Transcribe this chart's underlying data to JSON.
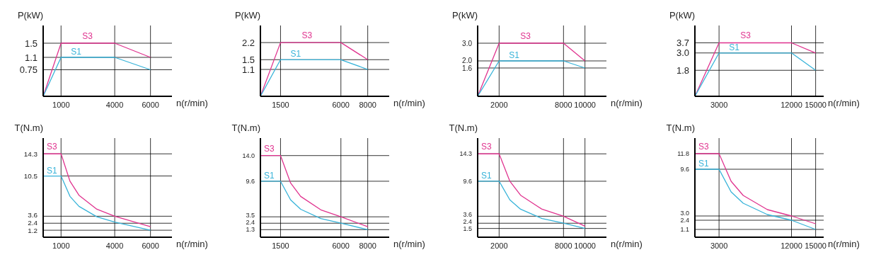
{
  "chart_data": [
    {
      "type": "line",
      "ylabel": "P(kW)",
      "xlabel": "n(r/min)",
      "xlim": [
        0,
        7200
      ],
      "xticks": [
        1000,
        4000,
        6000
      ],
      "ylim": [
        0,
        2
      ],
      "yticks": [
        0.75,
        1.1,
        1.5
      ],
      "grid": true,
      "legend": false,
      "series": [
        {
          "name": "S3",
          "color": "#e0338f",
          "x": [
            0,
            1000,
            4000,
            6000
          ],
          "values": [
            0,
            1.5,
            1.5,
            1.1
          ]
        },
        {
          "name": "S1",
          "color": "#37b3d9",
          "x": [
            0,
            1000,
            4000,
            6000
          ],
          "values": [
            0,
            1.1,
            1.1,
            0.75
          ]
        }
      ]
    },
    {
      "type": "line",
      "ylabel": "P(kW)",
      "xlabel": "n(r/min)",
      "xlim": [
        0,
        9600
      ],
      "xticks": [
        1500,
        6000,
        8000
      ],
      "ylim": [
        0,
        2.9
      ],
      "yticks": [
        1.1,
        1.5,
        2.2
      ],
      "grid": true,
      "legend": false,
      "series": [
        {
          "name": "S3",
          "color": "#e0338f",
          "x": [
            0,
            1500,
            6000,
            8000
          ],
          "values": [
            0,
            2.2,
            2.2,
            1.5
          ]
        },
        {
          "name": "S1",
          "color": "#37b3d9",
          "x": [
            0,
            1500,
            6000,
            8000
          ],
          "values": [
            0,
            1.5,
            1.5,
            1.1
          ]
        }
      ]
    },
    {
      "type": "line",
      "ylabel": "P(kW)",
      "xlabel": "n(r/min)",
      "xlim": [
        0,
        12000
      ],
      "xticks": [
        2000,
        8000,
        10000
      ],
      "ylim": [
        0,
        4
      ],
      "yticks": [
        1.6,
        {
          "value": 2,
          "label": "2.0"
        },
        {
          "value": 3,
          "label": "3.0"
        }
      ],
      "grid": true,
      "legend": false,
      "series": [
        {
          "name": "S3",
          "color": "#e0338f",
          "x": [
            0,
            2000,
            8000,
            10000
          ],
          "values": [
            0,
            3,
            3,
            2
          ]
        },
        {
          "name": "S1",
          "color": "#37b3d9",
          "x": [
            0,
            2000,
            8000,
            10000
          ],
          "values": [
            0,
            2,
            2,
            1.6
          ]
        }
      ]
    },
    {
      "type": "line",
      "ylabel": "P(kW)",
      "xlabel": "n(r/min)",
      "xlim": [
        0,
        16000
      ],
      "xticks": [
        3000,
        12000,
        15000
      ],
      "ylim": [
        0,
        4.9
      ],
      "yticks": [
        1.8,
        {
          "value": 3,
          "label": "3.0"
        },
        3.7
      ],
      "grid": true,
      "legend": false,
      "series": [
        {
          "name": "S3",
          "color": "#e0338f",
          "x": [
            0,
            3000,
            12000,
            15000
          ],
          "values": [
            0,
            3.7,
            3.7,
            3
          ]
        },
        {
          "name": "S1",
          "color": "#37b3d9",
          "x": [
            0,
            3000,
            12000,
            15000
          ],
          "values": [
            0,
            3,
            3,
            1.8
          ]
        }
      ]
    },
    {
      "type": "line",
      "ylabel": "T(N.m)",
      "xlabel": "n(r/min)",
      "xlim": [
        0,
        7200
      ],
      "xticks": [
        1000,
        4000,
        6000
      ],
      "ylim": [
        0,
        17
      ],
      "yticks": [
        1.2,
        2.4,
        3.6,
        10.5,
        14.3
      ],
      "grid": true,
      "legend": false,
      "series": [
        {
          "name": "S3",
          "color": "#e0338f",
          "x": [
            0,
            1000,
            1500,
            2000,
            3000,
            4000,
            6000
          ],
          "values": [
            14.3,
            14.3,
            9.6,
            7.2,
            4.8,
            3.6,
            1.8
          ]
        },
        {
          "name": "S1",
          "color": "#37b3d9",
          "x": [
            0,
            1000,
            1500,
            2000,
            3000,
            4000,
            6000
          ],
          "values": [
            10.5,
            10.5,
            7,
            5.3,
            3.5,
            2.6,
            1.2
          ]
        }
      ]
    },
    {
      "type": "line",
      "ylabel": "T(N.m)",
      "xlabel": "n(r/min)",
      "xlim": [
        0,
        9600
      ],
      "xticks": [
        1500,
        6000,
        8000
      ],
      "ylim": [
        0,
        17
      ],
      "yticks": [
        1.3,
        2.4,
        3.5,
        9.6,
        {
          "value": 14,
          "label": "14.0"
        }
      ],
      "grid": true,
      "legend": false,
      "series": [
        {
          "name": "S3",
          "color": "#e0338f",
          "x": [
            0,
            1500,
            2250,
            3000,
            4500,
            6000,
            8000
          ],
          "values": [
            14,
            14,
            9.3,
            7,
            4.7,
            3.5,
            1.8
          ]
        },
        {
          "name": "S1",
          "color": "#37b3d9",
          "x": [
            0,
            1500,
            2250,
            3000,
            4500,
            6000,
            8000
          ],
          "values": [
            9.6,
            9.6,
            6.4,
            4.8,
            3.2,
            2.4,
            1.3
          ]
        }
      ]
    },
    {
      "type": "line",
      "ylabel": "T(N.m)",
      "xlabel": "n(r/min)",
      "xlim": [
        0,
        12000
      ],
      "xticks": [
        2000,
        8000,
        10000
      ],
      "ylim": [
        0,
        17
      ],
      "yticks": [
        1.5,
        2.4,
        3.6,
        9.6,
        14.3
      ],
      "grid": true,
      "legend": false,
      "series": [
        {
          "name": "S3",
          "color": "#e0338f",
          "x": [
            0,
            2000,
            3000,
            4000,
            6000,
            8000,
            10000
          ],
          "values": [
            14.3,
            14.3,
            9.6,
            7.2,
            4.8,
            3.6,
            1.9
          ]
        },
        {
          "name": "S1",
          "color": "#37b3d9",
          "x": [
            0,
            2000,
            3000,
            4000,
            6000,
            8000,
            10000
          ],
          "values": [
            9.6,
            9.6,
            6.4,
            4.8,
            3.2,
            2.4,
            1.5
          ]
        }
      ]
    },
    {
      "type": "line",
      "ylabel": "T(N.m)",
      "xlabel": "n(r/min)",
      "xlim": [
        0,
        16000
      ],
      "xticks": [
        3000,
        12000,
        15000
      ],
      "ylim": [
        0,
        14
      ],
      "yticks": [
        1.1,
        2.4,
        {
          "value": 3,
          "label": "3.0"
        },
        9.6,
        11.8
      ],
      "grid": true,
      "legend": false,
      "series": [
        {
          "name": "S3",
          "color": "#e0338f",
          "x": [
            0,
            3000,
            4500,
            6000,
            9000,
            12000,
            15000
          ],
          "values": [
            11.8,
            11.8,
            7.9,
            5.9,
            3.9,
            3,
            1.9
          ]
        },
        {
          "name": "S1",
          "color": "#37b3d9",
          "x": [
            0,
            3000,
            4500,
            6000,
            9000,
            12000,
            15000
          ],
          "values": [
            9.6,
            9.6,
            6.4,
            4.8,
            3.2,
            2.4,
            1.1
          ]
        }
      ]
    }
  ]
}
